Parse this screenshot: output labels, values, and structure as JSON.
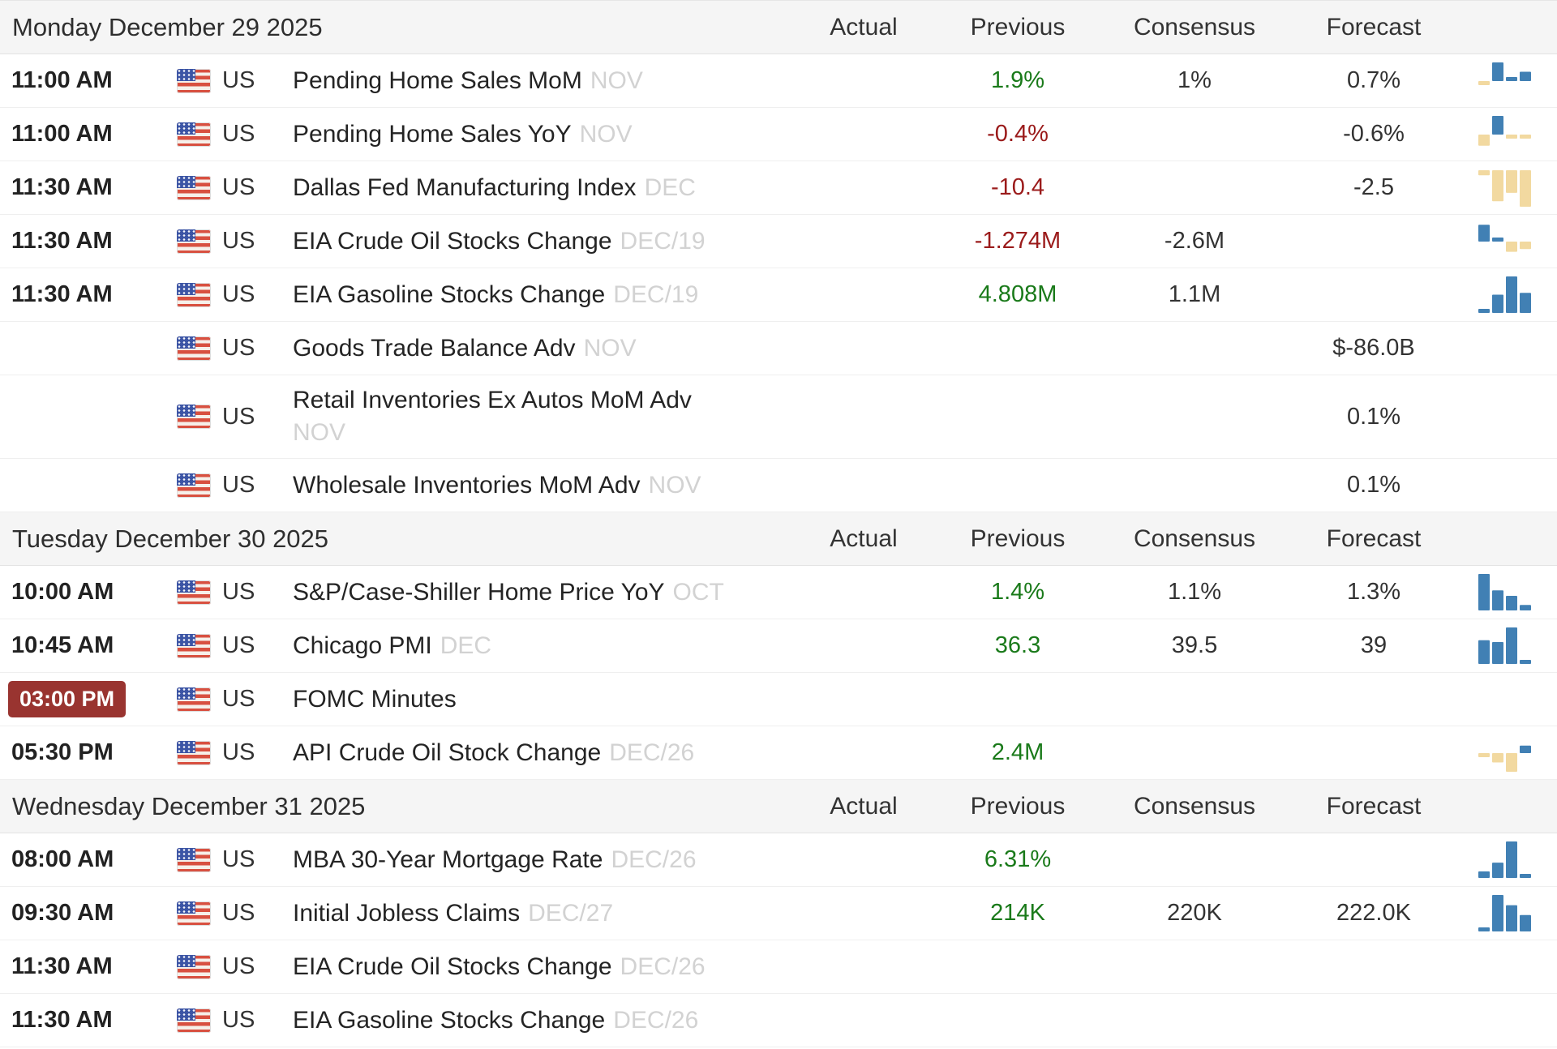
{
  "columns": [
    "Actual",
    "Previous",
    "Consensus",
    "Forecast"
  ],
  "colors": {
    "green": "#1a7a1a",
    "red": "#9b1b1b",
    "blue_bar": "#4180b4",
    "tan_bar": "#f2d9a0",
    "badge_bg": "#993430",
    "badge_text": "#ffffff",
    "header_bg": "#f5f5f5",
    "ref_text": "#d2d2d2"
  },
  "sections": [
    {
      "date": "Monday December 29 2025",
      "rows": [
        {
          "time": "11:00 AM",
          "time_badge": false,
          "country": "US",
          "event": "Pending Home Sales MoM",
          "ref": "NOV",
          "ref_block": false,
          "actual": "",
          "previous": "1.9%",
          "prev_color": "green",
          "consensus": "1%",
          "forecast": "0.7%",
          "spark": [
            [
              -0.16,
              "tan"
            ],
            [
              1,
              "blue"
            ],
            [
              0.1,
              "blue"
            ],
            [
              0.5,
              "blue"
            ]
          ]
        },
        {
          "time": "11:00 AM",
          "time_badge": false,
          "country": "US",
          "event": "Pending Home Sales YoY",
          "ref": "NOV",
          "ref_block": false,
          "actual": "",
          "previous": "-0.4%",
          "prev_color": "red",
          "consensus": "",
          "forecast": "-0.6%",
          "spark": [
            [
              -0.6,
              "tan"
            ],
            [
              1,
              "blue"
            ],
            [
              -0.2,
              "tan"
            ],
            [
              -0.12,
              "tan"
            ]
          ]
        },
        {
          "time": "11:30 AM",
          "time_badge": false,
          "country": "US",
          "event": "Dallas Fed Manufacturing Index",
          "ref": "DEC",
          "ref_block": false,
          "actual": "",
          "previous": "-10.4",
          "prev_color": "red",
          "consensus": "",
          "forecast": "-2.5",
          "spark": [
            [
              -0.14,
              "tan"
            ],
            [
              -0.85,
              "tan"
            ],
            [
              -0.62,
              "tan"
            ],
            [
              -1,
              "tan"
            ]
          ]
        },
        {
          "time": "11:30 AM",
          "time_badge": false,
          "country": "US",
          "event": "EIA Crude Oil Stocks Change",
          "ref": "DEC/19",
          "ref_block": false,
          "actual": "",
          "previous": "-1.274M",
          "prev_color": "red",
          "consensus": "-2.6M",
          "forecast": "",
          "spark": [
            [
              0.9,
              "blue"
            ],
            [
              0.15,
              "blue"
            ],
            [
              -0.55,
              "tan"
            ],
            [
              -0.4,
              "tan"
            ]
          ]
        },
        {
          "time": "11:30 AM",
          "time_badge": false,
          "country": "US",
          "event": "EIA Gasoline Stocks Change",
          "ref": "DEC/19",
          "ref_block": false,
          "actual": "",
          "previous": "4.808M",
          "prev_color": "green",
          "consensus": "1.1M",
          "forecast": "",
          "spark": [
            [
              0.1,
              "blue"
            ],
            [
              0.5,
              "blue"
            ],
            [
              1,
              "blue"
            ],
            [
              0.55,
              "blue"
            ]
          ]
        },
        {
          "time": "",
          "time_badge": false,
          "country": "US",
          "event": "Goods Trade Balance Adv",
          "ref": "NOV",
          "ref_block": false,
          "actual": "",
          "previous": "",
          "prev_color": "",
          "consensus": "",
          "forecast": "$-86.0B",
          "spark": []
        },
        {
          "time": "",
          "time_badge": false,
          "country": "US",
          "event": "Retail Inventories Ex Autos MoM Adv",
          "ref": "NOV",
          "ref_block": true,
          "actual": "",
          "previous": "",
          "prev_color": "",
          "consensus": "",
          "forecast": "0.1%",
          "spark": []
        },
        {
          "time": "",
          "time_badge": false,
          "country": "US",
          "event": "Wholesale Inventories MoM Adv",
          "ref": "NOV",
          "ref_block": false,
          "actual": "",
          "previous": "",
          "prev_color": "",
          "consensus": "",
          "forecast": "0.1%",
          "spark": []
        }
      ]
    },
    {
      "date": "Tuesday December 30 2025",
      "rows": [
        {
          "time": "10:00 AM",
          "time_badge": false,
          "country": "US",
          "event": "S&P/Case-Shiller Home Price YoY",
          "ref": "OCT",
          "ref_block": false,
          "actual": "",
          "previous": "1.4%",
          "prev_color": "green",
          "consensus": "1.1%",
          "forecast": "1.3%",
          "spark": [
            [
              1,
              "blue"
            ],
            [
              0.55,
              "blue"
            ],
            [
              0.4,
              "blue"
            ],
            [
              0.15,
              "blue"
            ]
          ]
        },
        {
          "time": "10:45 AM",
          "time_badge": false,
          "country": "US",
          "event": "Chicago PMI",
          "ref": "DEC",
          "ref_block": false,
          "actual": "",
          "previous": "36.3",
          "prev_color": "green",
          "consensus": "39.5",
          "forecast": "39",
          "spark": [
            [
              0.65,
              "blue"
            ],
            [
              0.6,
              "blue"
            ],
            [
              1,
              "blue"
            ],
            [
              0.08,
              "blue"
            ]
          ]
        },
        {
          "time": "03:00 PM",
          "time_badge": true,
          "country": "US",
          "event": "FOMC Minutes",
          "ref": "",
          "ref_block": false,
          "actual": "",
          "previous": "",
          "prev_color": "",
          "consensus": "",
          "forecast": "",
          "spark": []
        },
        {
          "time": "05:30 PM",
          "time_badge": false,
          "country": "US",
          "event": "API Crude Oil Stock Change",
          "ref": "DEC/26",
          "ref_block": false,
          "actual": "",
          "previous": "2.4M",
          "prev_color": "green",
          "consensus": "",
          "forecast": "",
          "spark": [
            [
              -0.15,
              "tan"
            ],
            [
              -0.5,
              "tan"
            ],
            [
              -1,
              "tan"
            ],
            [
              0.4,
              "blue"
            ]
          ]
        }
      ]
    },
    {
      "date": "Wednesday December 31 2025",
      "rows": [
        {
          "time": "08:00 AM",
          "time_badge": false,
          "country": "US",
          "event": "MBA 30-Year Mortgage Rate",
          "ref": "DEC/26",
          "ref_block": false,
          "actual": "",
          "previous": "6.31%",
          "prev_color": "green",
          "consensus": "",
          "forecast": "",
          "spark": [
            [
              0.18,
              "blue"
            ],
            [
              0.42,
              "blue"
            ],
            [
              1,
              "blue"
            ],
            [
              0.1,
              "blue"
            ]
          ]
        },
        {
          "time": "09:30 AM",
          "time_badge": false,
          "country": "US",
          "event": "Initial Jobless Claims",
          "ref": "DEC/27",
          "ref_block": false,
          "actual": "",
          "previous": "214K",
          "prev_color": "green",
          "consensus": "220K",
          "forecast": "222.0K",
          "spark": [
            [
              0.1,
              "blue"
            ],
            [
              1,
              "blue"
            ],
            [
              0.72,
              "blue"
            ],
            [
              0.45,
              "blue"
            ]
          ]
        },
        {
          "time": "11:30 AM",
          "time_badge": false,
          "country": "US",
          "event": "EIA Crude Oil Stocks Change",
          "ref": "DEC/26",
          "ref_block": false,
          "actual": "",
          "previous": "",
          "prev_color": "",
          "consensus": "",
          "forecast": "",
          "spark": []
        },
        {
          "time": "11:30 AM",
          "time_badge": false,
          "country": "US",
          "event": "EIA Gasoline Stocks Change",
          "ref": "DEC/26",
          "ref_block": false,
          "actual": "",
          "previous": "",
          "prev_color": "",
          "consensus": "",
          "forecast": "",
          "spark": []
        }
      ]
    }
  ]
}
